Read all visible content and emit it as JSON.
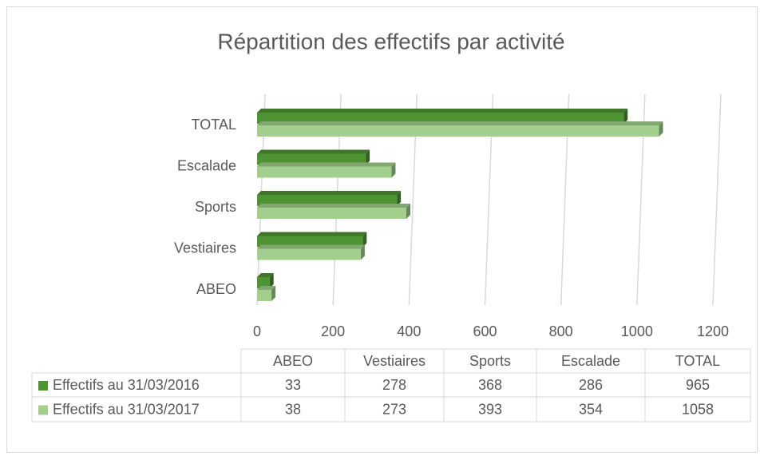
{
  "chart_data": {
    "type": "bar",
    "orientation": "horizontal",
    "title": "Répartition des effectifs par activité",
    "categories": [
      "ABEO",
      "Vestiaires",
      "Sports",
      "Escalade",
      "TOTAL"
    ],
    "series": [
      {
        "name": "Effectifs au 31/03/2016",
        "color": "#4f9433",
        "values": [
          33,
          278,
          368,
          286,
          965
        ]
      },
      {
        "name": "Effectifs au 31/03/2017",
        "color": "#a3cf8c",
        "values": [
          38,
          273,
          393,
          354,
          1058
        ]
      }
    ],
    "xlim": [
      0,
      1200
    ],
    "xticks": [
      0,
      200,
      400,
      600,
      800,
      1000,
      1200
    ],
    "grid": true
  }
}
